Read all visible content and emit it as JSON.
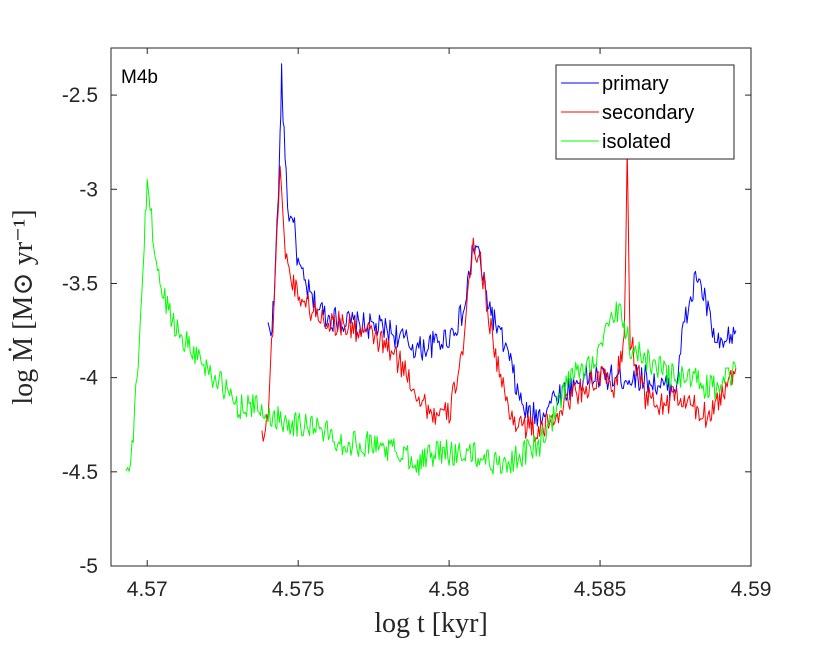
{
  "chart_data": {
    "type": "line",
    "panel_label": "M4b",
    "xlabel": "log t [kyr]",
    "ylabel": "log Ṁ [M⊙ yr⁻¹]",
    "xlim": [
      4.5688,
      4.59
    ],
    "ylim": [
      -5,
      -2.25
    ],
    "x_ticks": [
      4.57,
      4.575,
      4.58,
      4.585,
      4.59
    ],
    "x_tick_labels": [
      "4.57",
      "4.575",
      "4.58",
      "4.585",
      "4.59"
    ],
    "y_ticks": [
      -5,
      -4.5,
      -4,
      -3.5,
      -3,
      -2.5
    ],
    "y_tick_labels": [
      "-5",
      "-4.5",
      "-4",
      "-3.5",
      "-3",
      "-2.5"
    ],
    "legend": {
      "location": "top-right",
      "entries": [
        "primary",
        "secondary",
        "isolated"
      ]
    },
    "series": [
      {
        "name": "primary",
        "color": "#0000ff",
        "points": [
          [
            4.574,
            -3.74
          ],
          [
            4.5741,
            -3.74
          ],
          [
            4.5742,
            -3.6
          ],
          [
            4.5743,
            -3.2
          ],
          [
            4.5744,
            -2.75
          ],
          [
            4.57445,
            -2.4
          ],
          [
            4.5745,
            -2.6
          ],
          [
            4.5746,
            -2.9
          ],
          [
            4.5747,
            -3.2
          ],
          [
            4.5748,
            -3.1
          ],
          [
            4.575,
            -3.4
          ],
          [
            4.5752,
            -3.5
          ],
          [
            4.5755,
            -3.6
          ],
          [
            4.576,
            -3.68
          ],
          [
            4.5765,
            -3.7
          ],
          [
            4.577,
            -3.72
          ],
          [
            4.5775,
            -3.73
          ],
          [
            4.578,
            -3.75
          ],
          [
            4.5785,
            -3.8
          ],
          [
            4.579,
            -3.85
          ],
          [
            4.5795,
            -3.82
          ],
          [
            4.58,
            -3.78
          ],
          [
            4.5805,
            -3.65
          ],
          [
            4.5808,
            -3.3
          ],
          [
            4.581,
            -3.35
          ],
          [
            4.5812,
            -3.55
          ],
          [
            4.5815,
            -3.7
          ],
          [
            4.582,
            -3.9
          ],
          [
            4.5823,
            -4.1
          ],
          [
            4.5826,
            -4.2
          ],
          [
            4.583,
            -4.2
          ],
          [
            4.5835,
            -4.1
          ],
          [
            4.584,
            -4.05
          ],
          [
            4.5845,
            -4.0
          ],
          [
            4.585,
            -4.0
          ],
          [
            4.5855,
            -4.0
          ],
          [
            4.586,
            -4.0
          ],
          [
            4.5865,
            -4.0
          ],
          [
            4.587,
            -4.05
          ],
          [
            4.5875,
            -4.05
          ],
          [
            4.5878,
            -3.7
          ],
          [
            4.588,
            -3.6
          ],
          [
            4.5882,
            -3.45
          ],
          [
            4.5885,
            -3.6
          ],
          [
            4.5888,
            -3.8
          ],
          [
            4.589,
            -3.85
          ],
          [
            4.5895,
            -3.75
          ]
        ]
      },
      {
        "name": "secondary",
        "color": "#ff0000",
        "points": [
          [
            4.5738,
            -4.3
          ],
          [
            4.574,
            -4.2
          ],
          [
            4.5742,
            -3.6
          ],
          [
            4.5743,
            -3.2
          ],
          [
            4.5744,
            -2.9
          ],
          [
            4.5745,
            -3.2
          ],
          [
            4.5747,
            -3.45
          ],
          [
            4.575,
            -3.55
          ],
          [
            4.5755,
            -3.65
          ],
          [
            4.576,
            -3.7
          ],
          [
            4.5765,
            -3.72
          ],
          [
            4.577,
            -3.75
          ],
          [
            4.5775,
            -3.78
          ],
          [
            4.578,
            -3.85
          ],
          [
            4.5785,
            -3.95
          ],
          [
            4.579,
            -4.1
          ],
          [
            4.5795,
            -4.2
          ],
          [
            4.58,
            -4.2
          ],
          [
            4.5805,
            -3.8
          ],
          [
            4.5808,
            -3.3
          ],
          [
            4.581,
            -3.35
          ],
          [
            4.5812,
            -3.55
          ],
          [
            4.5815,
            -3.85
          ],
          [
            4.582,
            -4.2
          ],
          [
            4.5825,
            -4.25
          ],
          [
            4.583,
            -4.3
          ],
          [
            4.5835,
            -4.2
          ],
          [
            4.584,
            -4.1
          ],
          [
            4.5845,
            -4.05
          ],
          [
            4.585,
            -4.0
          ],
          [
            4.5855,
            -4.05
          ],
          [
            4.5858,
            -3.8
          ],
          [
            4.5859,
            -2.85
          ],
          [
            4.586,
            -3.8
          ],
          [
            4.5865,
            -4.1
          ],
          [
            4.587,
            -4.15
          ],
          [
            4.5875,
            -4.1
          ],
          [
            4.588,
            -4.15
          ],
          [
            4.5885,
            -4.2
          ],
          [
            4.589,
            -4.1
          ],
          [
            4.5895,
            -3.95
          ]
        ]
      },
      {
        "name": "isolated",
        "color": "#00ff00",
        "points": [
          [
            4.5693,
            -4.5
          ],
          [
            4.5694,
            -4.5
          ],
          [
            4.5695,
            -4.4
          ],
          [
            4.5697,
            -3.9
          ],
          [
            4.5699,
            -3.3
          ],
          [
            4.57,
            -2.95
          ],
          [
            4.5701,
            -3.1
          ],
          [
            4.5703,
            -3.4
          ],
          [
            4.5705,
            -3.55
          ],
          [
            4.571,
            -3.75
          ],
          [
            4.5715,
            -3.85
          ],
          [
            4.572,
            -3.95
          ],
          [
            4.5725,
            -4.05
          ],
          [
            4.573,
            -4.15
          ],
          [
            4.5735,
            -4.15
          ],
          [
            4.574,
            -4.2
          ],
          [
            4.5745,
            -4.22
          ],
          [
            4.575,
            -4.25
          ],
          [
            4.5755,
            -4.25
          ],
          [
            4.576,
            -4.3
          ],
          [
            4.5765,
            -4.35
          ],
          [
            4.577,
            -4.35
          ],
          [
            4.5775,
            -4.35
          ],
          [
            4.578,
            -4.38
          ],
          [
            4.5785,
            -4.4
          ],
          [
            4.579,
            -4.45
          ],
          [
            4.5795,
            -4.4
          ],
          [
            4.58,
            -4.4
          ],
          [
            4.5805,
            -4.4
          ],
          [
            4.581,
            -4.42
          ],
          [
            4.5815,
            -4.45
          ],
          [
            4.582,
            -4.45
          ],
          [
            4.5825,
            -4.4
          ],
          [
            4.583,
            -4.35
          ],
          [
            4.5835,
            -4.2
          ],
          [
            4.584,
            -4.0
          ],
          [
            4.5845,
            -3.95
          ],
          [
            4.585,
            -3.85
          ],
          [
            4.5855,
            -3.65
          ],
          [
            4.5858,
            -3.7
          ],
          [
            4.586,
            -3.85
          ],
          [
            4.5865,
            -3.9
          ],
          [
            4.587,
            -3.95
          ],
          [
            4.5875,
            -4.0
          ],
          [
            4.588,
            -4.0
          ],
          [
            4.5885,
            -4.05
          ],
          [
            4.589,
            -4.05
          ],
          [
            4.5895,
            -3.95
          ]
        ]
      }
    ]
  }
}
